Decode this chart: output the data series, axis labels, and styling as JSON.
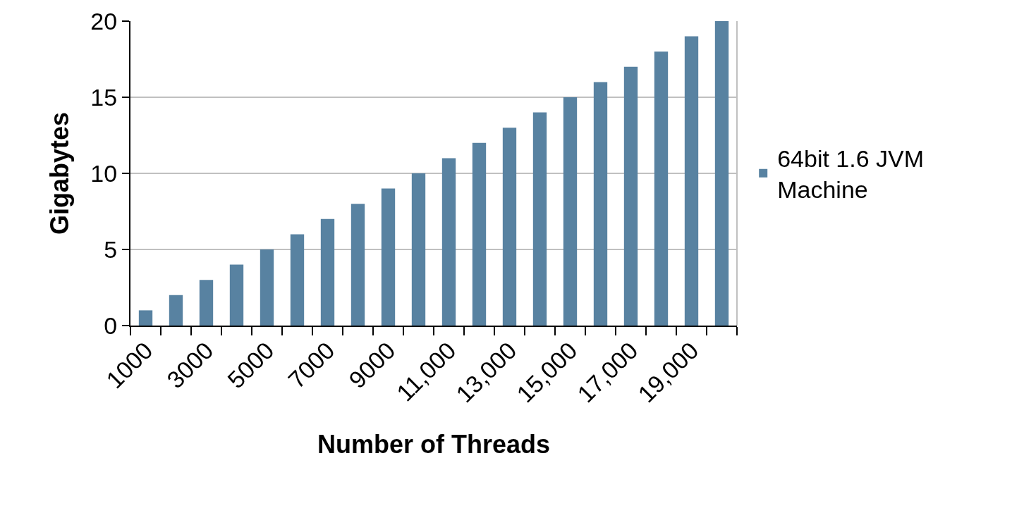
{
  "chart_data": {
    "type": "bar",
    "xlabel": "Number of Threads",
    "ylabel": "Gigabytes",
    "categories": [
      "1000",
      null,
      "3000",
      null,
      "5000",
      null,
      "7000",
      null,
      "9000",
      null,
      "11,000",
      null,
      "13,000",
      null,
      "15,000",
      null,
      "17,000",
      null,
      "19,000",
      null
    ],
    "series": [
      {
        "name": "64bit 1.6 JVM Machine",
        "color": "#5882a1",
        "values": [
          1,
          2,
          3,
          4,
          5,
          6,
          7,
          8,
          9,
          10,
          11,
          12,
          13,
          14,
          15,
          16,
          17,
          18,
          19,
          20
        ]
      }
    ],
    "ylim": [
      0,
      20
    ],
    "yticks": [
      0,
      5,
      10,
      15,
      20
    ],
    "grid": "y",
    "legend": "right"
  }
}
